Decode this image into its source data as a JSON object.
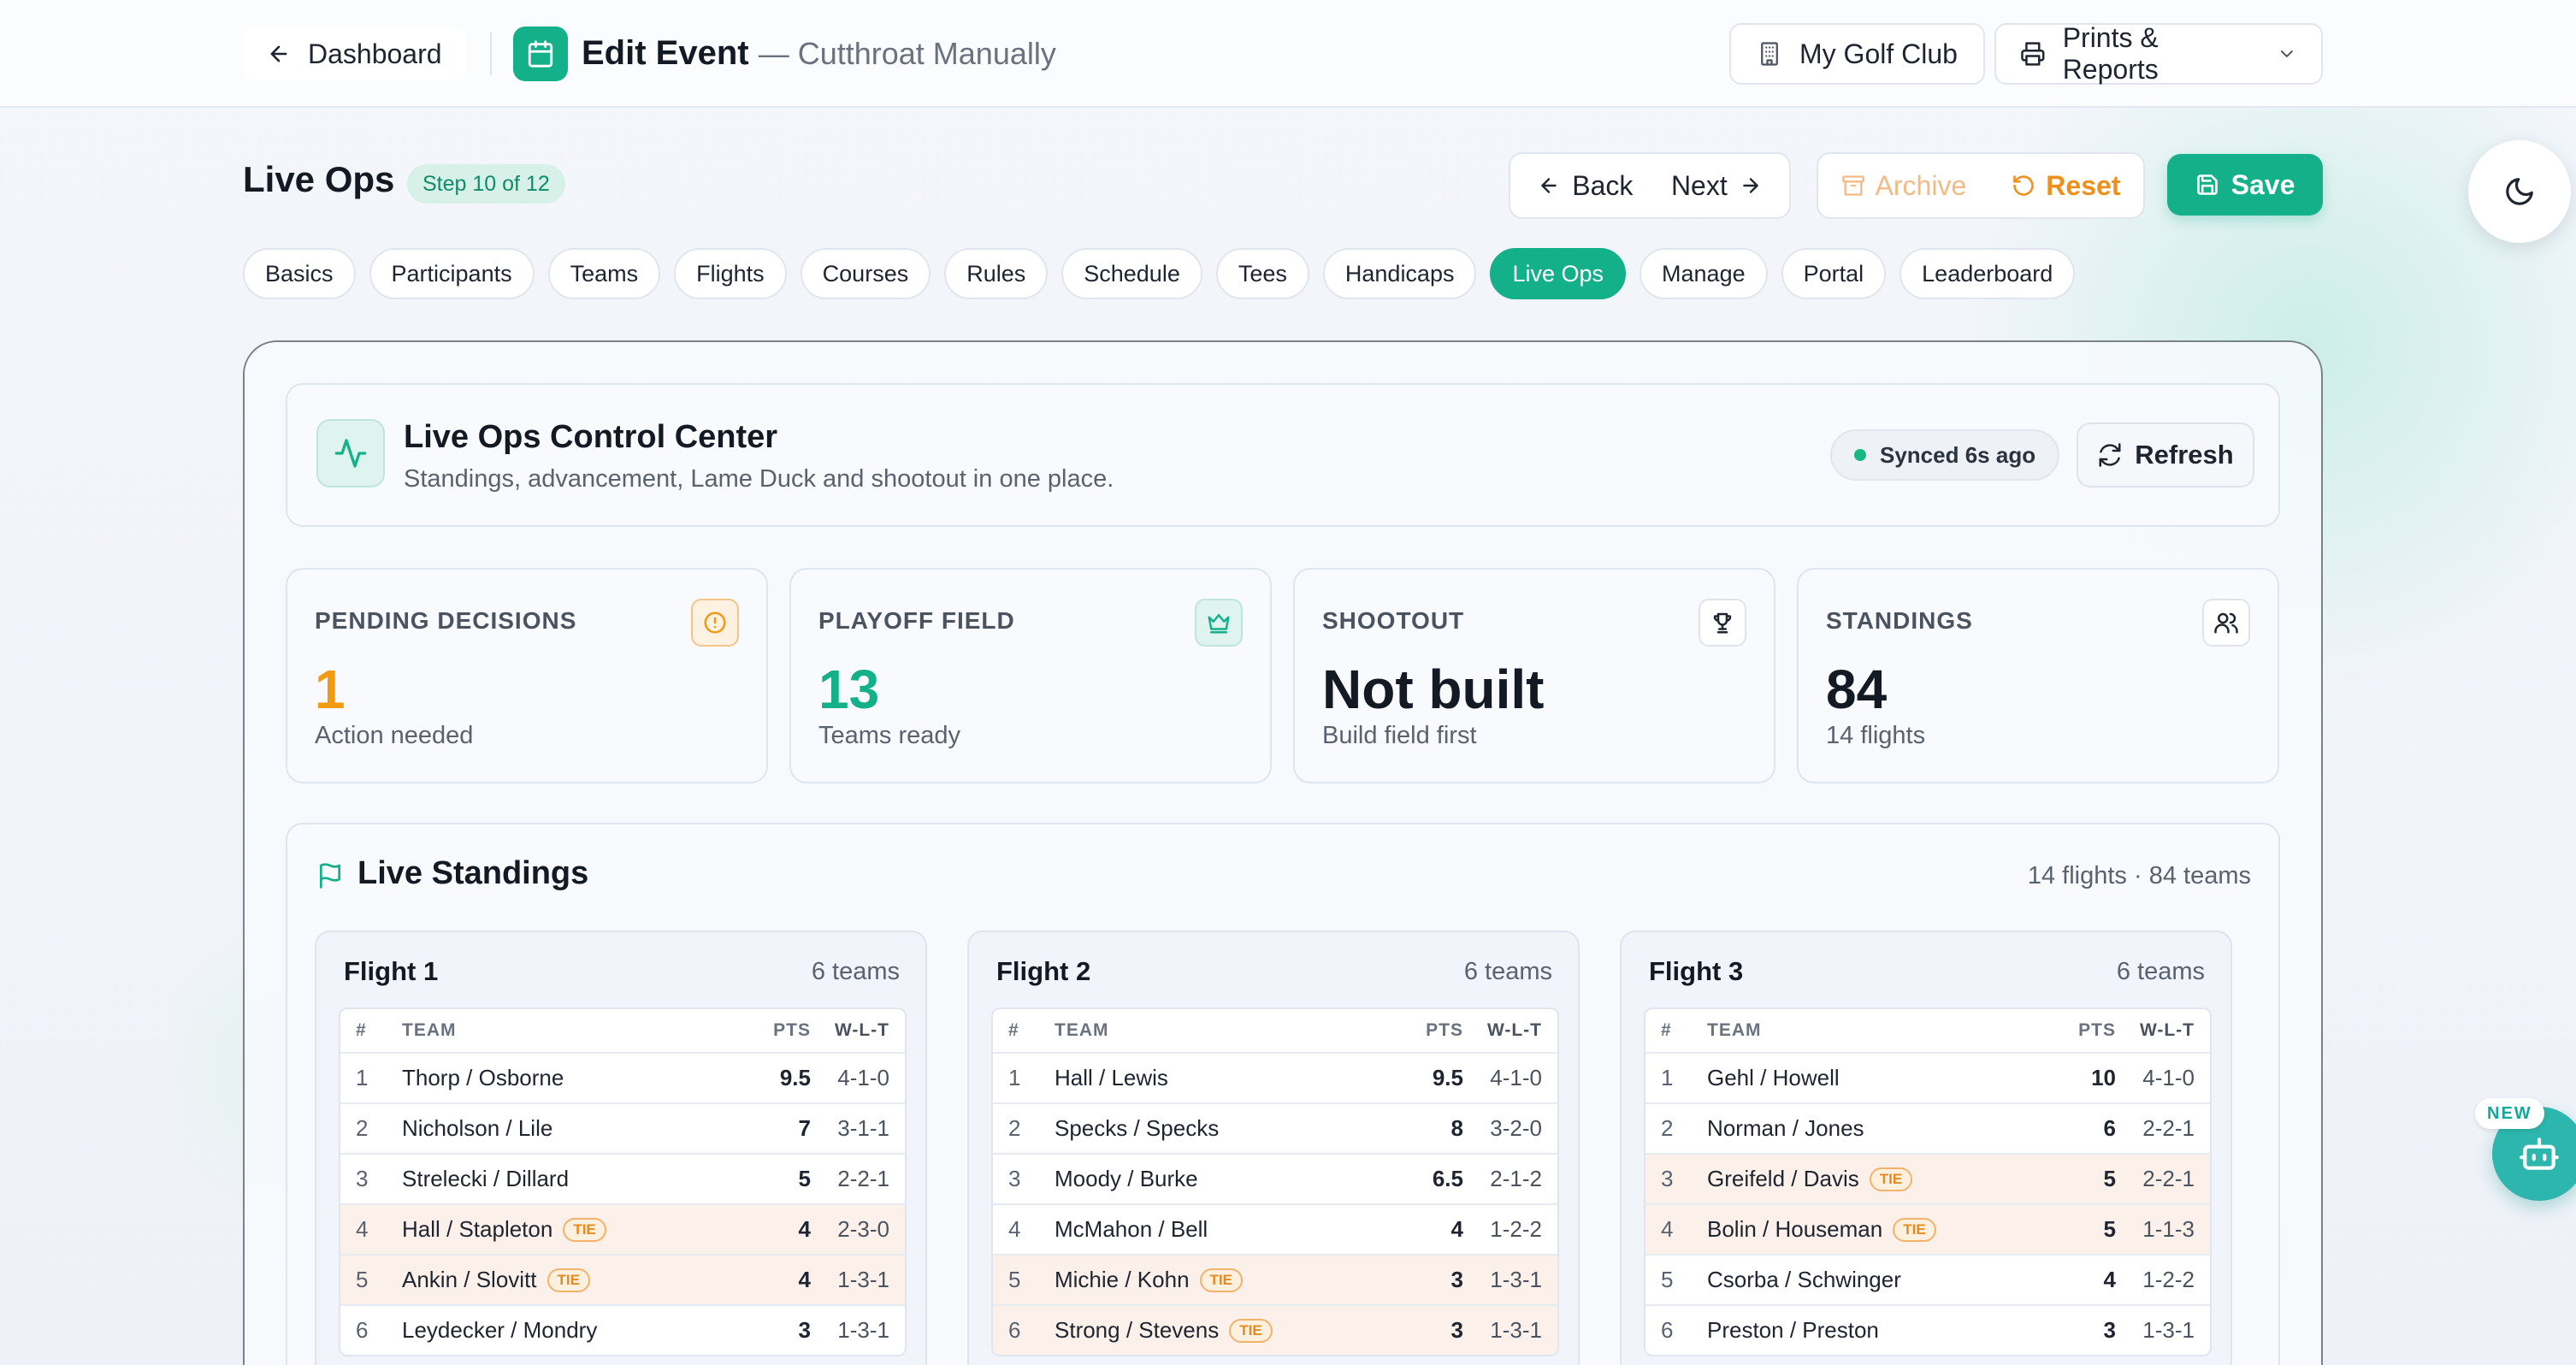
{
  "header": {
    "back_label": "Dashboard",
    "title": "Edit Event",
    "subtitle": "— Cutthroat Manually",
    "club_label": "My Golf Club",
    "prints_label": "Prints & Reports"
  },
  "section": {
    "title": "Live Ops",
    "step": "Step 10 of 12",
    "back": "Back",
    "next": "Next",
    "archive": "Archive",
    "reset": "Reset",
    "save": "Save"
  },
  "tabs": [
    {
      "label": "Basics"
    },
    {
      "label": "Participants"
    },
    {
      "label": "Teams"
    },
    {
      "label": "Flights"
    },
    {
      "label": "Courses"
    },
    {
      "label": "Rules"
    },
    {
      "label": "Schedule"
    },
    {
      "label": "Tees"
    },
    {
      "label": "Handicaps"
    },
    {
      "label": "Live Ops"
    },
    {
      "label": "Manage"
    },
    {
      "label": "Portal"
    },
    {
      "label": "Leaderboard"
    }
  ],
  "active_tab": "Live Ops",
  "control_center": {
    "title": "Live Ops Control Center",
    "subtitle": "Standings, advancement, Lame Duck and shootout in one place.",
    "synced": "Synced 6s ago",
    "refresh": "Refresh"
  },
  "stats": [
    {
      "label": "PENDING DECISIONS",
      "value": "1",
      "note": "Action needed",
      "color": "#f29a12",
      "icon": "alert-circle-icon"
    },
    {
      "label": "PLAYOFF FIELD",
      "value": "13",
      "note": "Teams ready",
      "color": "#14b08a",
      "icon": "crown-icon"
    },
    {
      "label": "SHOOTOUT",
      "value": "Not built",
      "note": "Build field first",
      "color": "#141a24",
      "icon": "trophy-icon"
    },
    {
      "label": "STANDINGS",
      "value": "84",
      "note": "14 flights",
      "color": "#141a24",
      "icon": "users-icon"
    }
  ],
  "standings": {
    "title": "Live Standings",
    "summary": "14 flights · 84 teams",
    "columns": {
      "rank": "#",
      "team": "TEAM",
      "pts": "PTS",
      "wlt": "W-L-T"
    },
    "tie_label": "TIE",
    "flights": [
      {
        "name": "Flight 1",
        "teams": "6 teams",
        "rows": [
          {
            "rank": "1",
            "team": "Thorp / Osborne",
            "pts": "9.5",
            "wlt": "4-1-0",
            "tie": false
          },
          {
            "rank": "2",
            "team": "Nicholson / Lile",
            "pts": "7",
            "wlt": "3-1-1",
            "tie": false
          },
          {
            "rank": "3",
            "team": "Strelecki / Dillard",
            "pts": "5",
            "wlt": "2-2-1",
            "tie": false
          },
          {
            "rank": "4",
            "team": "Hall / Stapleton",
            "pts": "4",
            "wlt": "2-3-0",
            "tie": true
          },
          {
            "rank": "5",
            "team": "Ankin / Slovitt",
            "pts": "4",
            "wlt": "1-3-1",
            "tie": true
          },
          {
            "rank": "6",
            "team": "Leydecker / Mondry",
            "pts": "3",
            "wlt": "1-3-1",
            "tie": false
          }
        ]
      },
      {
        "name": "Flight 2",
        "teams": "6 teams",
        "rows": [
          {
            "rank": "1",
            "team": "Hall / Lewis",
            "pts": "9.5",
            "wlt": "4-1-0",
            "tie": false
          },
          {
            "rank": "2",
            "team": "Specks / Specks",
            "pts": "8",
            "wlt": "3-2-0",
            "tie": false
          },
          {
            "rank": "3",
            "team": "Moody / Burke",
            "pts": "6.5",
            "wlt": "2-1-2",
            "tie": false
          },
          {
            "rank": "4",
            "team": "McMahon / Bell",
            "pts": "4",
            "wlt": "1-2-2",
            "tie": false
          },
          {
            "rank": "5",
            "team": "Michie / Kohn",
            "pts": "3",
            "wlt": "1-3-1",
            "tie": true
          },
          {
            "rank": "6",
            "team": "Strong / Stevens",
            "pts": "3",
            "wlt": "1-3-1",
            "tie": true
          }
        ]
      },
      {
        "name": "Flight 3",
        "teams": "6 teams",
        "rows": [
          {
            "rank": "1",
            "team": "Gehl / Howell",
            "pts": "10",
            "wlt": "4-1-0",
            "tie": false
          },
          {
            "rank": "2",
            "team": "Norman / Jones",
            "pts": "6",
            "wlt": "2-2-1",
            "tie": false
          },
          {
            "rank": "3",
            "team": "Greifeld / Davis",
            "pts": "5",
            "wlt": "2-2-1",
            "tie": true
          },
          {
            "rank": "4",
            "team": "Bolin / Houseman",
            "pts": "5",
            "wlt": "1-1-3",
            "tie": true
          },
          {
            "rank": "5",
            "team": "Csorba / Schwinger",
            "pts": "4",
            "wlt": "1-2-2",
            "tie": false
          },
          {
            "rank": "6",
            "team": "Preston / Preston",
            "pts": "3",
            "wlt": "1-3-1",
            "tie": false
          }
        ]
      }
    ]
  },
  "assistant": {
    "badge": "NEW"
  }
}
